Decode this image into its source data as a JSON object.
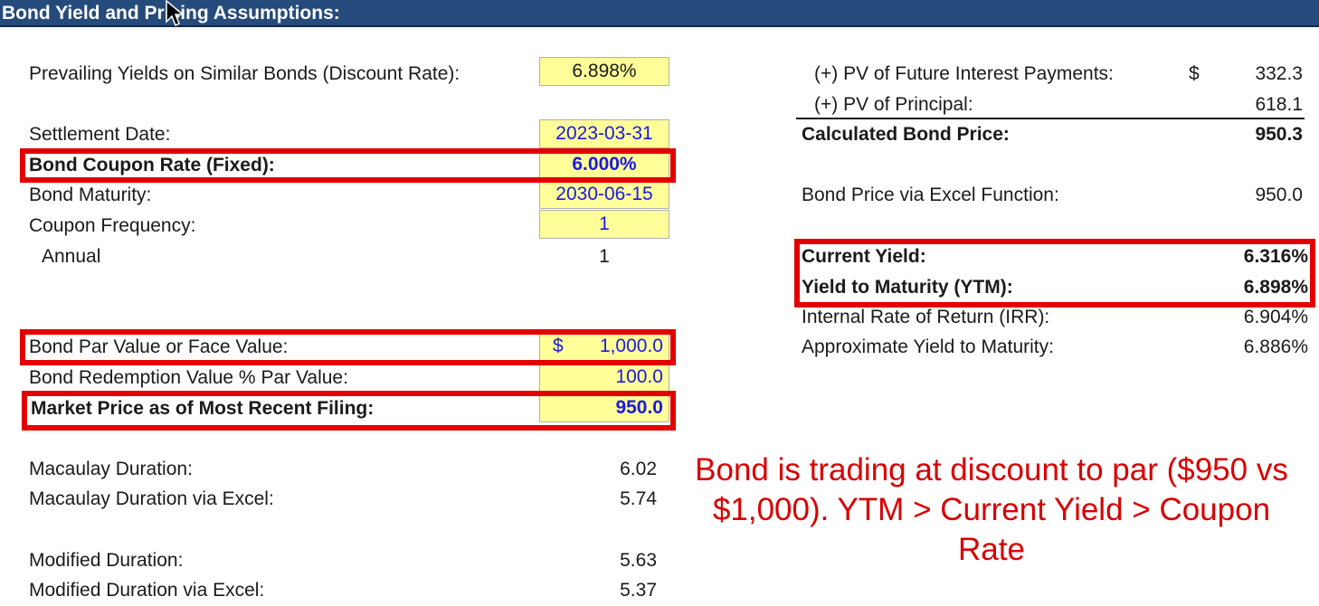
{
  "header": {
    "title": "Bond Yield and Pricing Assumptions:"
  },
  "left": {
    "discount_rate_label": "Prevailing Yields on Similar Bonds (Discount Rate):",
    "discount_rate_value": "6.898%",
    "settlement_label": "Settlement Date:",
    "settlement_value": "2023-03-31",
    "coupon_rate_label": "Bond Coupon Rate (Fixed):",
    "coupon_rate_value": "6.000%",
    "maturity_label": "Bond Maturity:",
    "maturity_value": "2030-06-15",
    "frequency_label": "Coupon Frequency:",
    "frequency_value": "1",
    "annual_label": "Annual",
    "annual_value": "1",
    "par_label": "Bond Par Value or Face Value:",
    "par_currency": "$",
    "par_value": "1,000.0",
    "redemption_label": "Bond Redemption Value % Par Value:",
    "redemption_value": "100.0",
    "market_price_label": "Market Price as of Most Recent Filing:",
    "market_price_value": "950.0",
    "macaulay_label": "Macaulay Duration:",
    "macaulay_value": "6.02",
    "macaulay_excel_label": "Macaulay Duration via Excel:",
    "macaulay_excel_value": "5.74",
    "modified_label": "Modified Duration:",
    "modified_value": "5.63",
    "modified_excel_label": "Modified Duration via Excel:",
    "modified_excel_value": "5.37"
  },
  "right": {
    "pv_interest_label": "(+) PV of Future Interest Payments:",
    "pv_interest_currency": "$",
    "pv_interest_value": "332.3",
    "pv_principal_label": "(+) PV of Principal:",
    "pv_principal_value": "618.1",
    "calc_price_label": "Calculated Bond Price:",
    "calc_price_value": "950.3",
    "excel_price_label": "Bond Price via Excel Function:",
    "excel_price_value": "950.0",
    "current_yield_label": "Current Yield:",
    "current_yield_value": "6.316%",
    "ytm_label": "Yield to Maturity (YTM):",
    "ytm_value": "6.898%",
    "irr_label": "Internal Rate of Return (IRR):",
    "irr_value": "6.904%",
    "approx_ytm_label": "Approximate Yield to Maturity:",
    "approx_ytm_value": "6.886%"
  },
  "annotation": {
    "text": "Bond is trading at discount to par ($950 vs $1,000). YTM > Current Yield > Coupon Rate"
  },
  "colors": {
    "header_bg": "#254b7c",
    "input_bg": "#ffff99",
    "input_text": "#1a1ae0",
    "highlight": "#e30000",
    "note": "#d80000"
  }
}
